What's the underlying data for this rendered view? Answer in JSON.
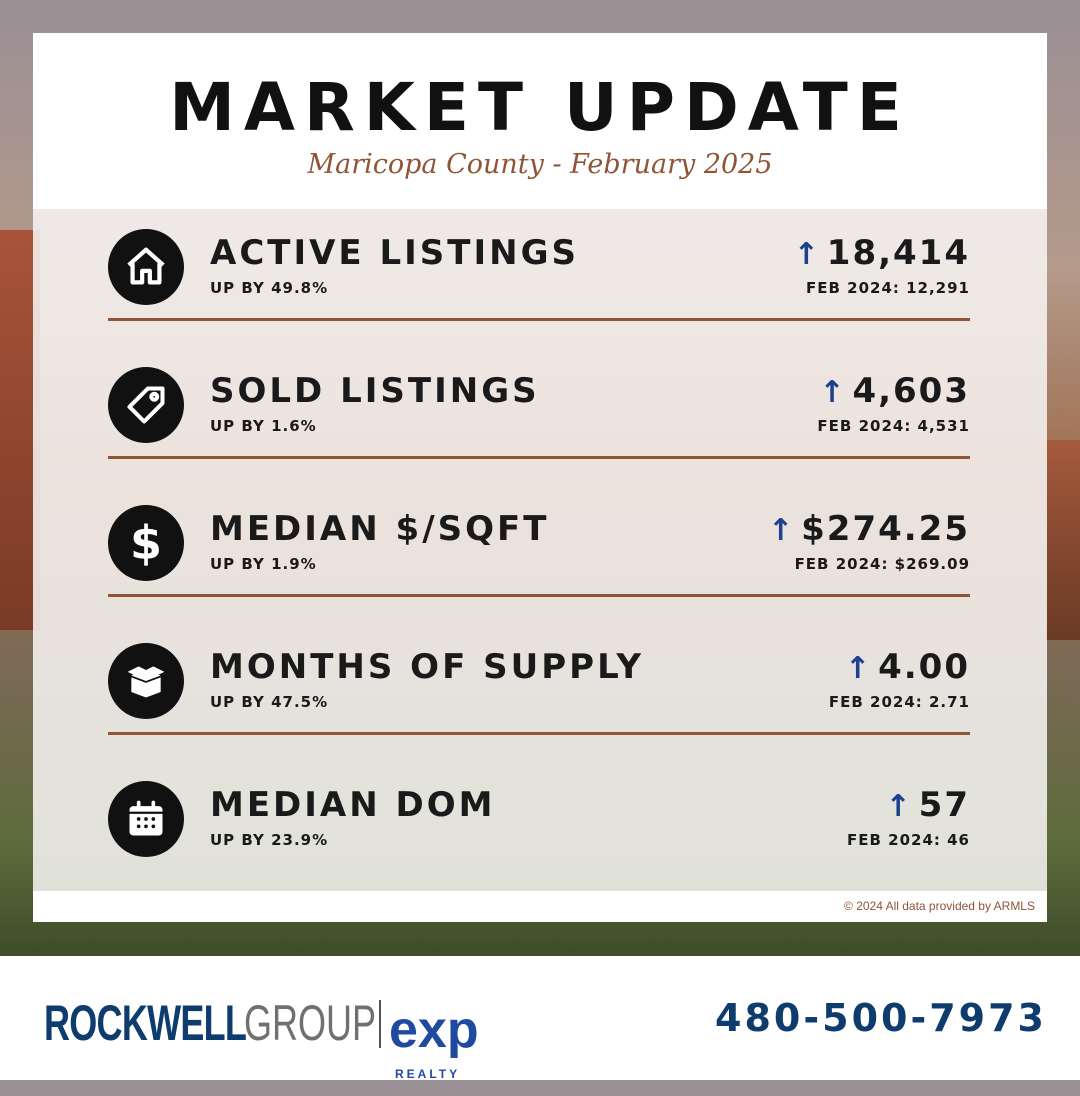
{
  "header": {
    "title": "MARKET UPDATE",
    "subtitle": "Maricopa County - February 2025"
  },
  "colors": {
    "accent": "#8f5536",
    "arrow": "#1f3f8f",
    "brand": "#0f3c6e"
  },
  "stats": [
    {
      "icon": "house-icon",
      "label": "ACTIVE LISTINGS",
      "change": "UP BY 49.8%",
      "value": "18,414",
      "prev": "FEB 2024: 12,291",
      "arrow": "↑"
    },
    {
      "icon": "tag-icon",
      "label": "SOLD LISTINGS",
      "change": "UP BY 1.6%",
      "value": "4,603",
      "prev": "FEB 2024: 4,531",
      "arrow": "↑"
    },
    {
      "icon": "dollar-icon",
      "label": "MEDIAN $/SQFT",
      "change": "UP BY 1.9%",
      "value": "$274.25",
      "prev": "FEB 2024: $269.09",
      "arrow": "↑"
    },
    {
      "icon": "box-icon",
      "label": "MONTHS OF SUPPLY",
      "change": "UP BY 47.5%",
      "value": "4.00",
      "prev": "FEB 2024: 2.71",
      "arrow": "↑"
    },
    {
      "icon": "calendar-icon",
      "label": "MEDIAN DOM",
      "change": "UP BY 23.9%",
      "value": "57",
      "prev": "FEB 2024: 46",
      "arrow": "↑"
    }
  ],
  "credit": "© 2024 All data provided by ARMLS",
  "footer": {
    "logo_main": "ROCKWELL",
    "logo_group": "GROUP",
    "logo_exp": "exp",
    "logo_realty": "REALTY",
    "phone": "480-500-7973"
  }
}
